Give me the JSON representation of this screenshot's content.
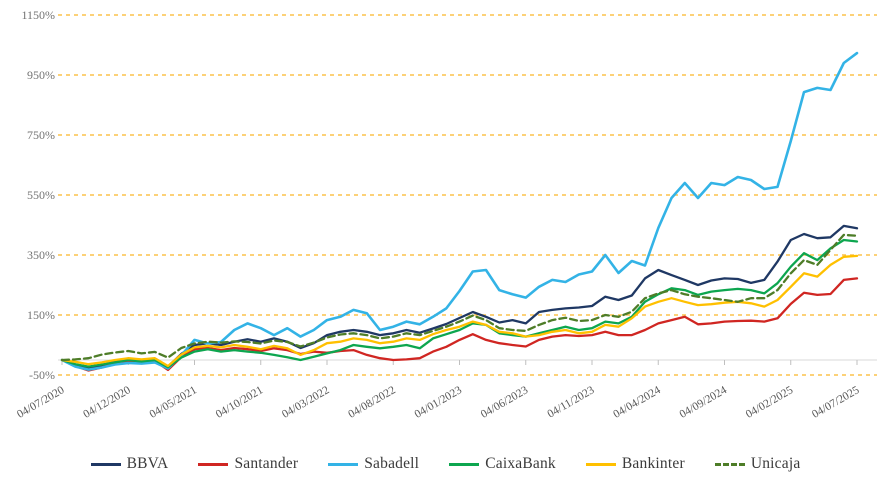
{
  "chart_data": {
    "type": "line",
    "title": "",
    "xlabel": "",
    "ylabel": "",
    "ylim": [
      -50,
      1150
    ],
    "n_points": 61,
    "points_per_tick": 5,
    "grid": "horizontal-dashed",
    "grid_color": "#FCC24B",
    "axis_line_color": "#D9D9D9",
    "tick_color": "#BFBFBF",
    "legend_position": "bottom",
    "y_tick_values": [
      1150,
      950,
      750,
      550,
      350,
      150,
      -50
    ],
    "y_tick_labels": [
      "1150%",
      "950%",
      "750%",
      "550%",
      "350%",
      "150%",
      "-50%"
    ],
    "x_tick_labels": [
      "04/07/2020",
      "04/12/2020",
      "04/05/2021",
      "04/10/2021",
      "04/03/2022",
      "04/08/2022",
      "04/01/2023",
      "04/06/2023",
      "04/11/2023",
      "04/04/2024",
      "04/09/2024",
      "04/02/2025",
      "04/07/2025"
    ],
    "series": [
      {
        "name": "BBVA",
        "color": "#1F3864",
        "dashed": false,
        "values": [
          0,
          -15,
          -28,
          -18,
          -5,
          5,
          0,
          5,
          -22,
          20,
          50,
          56,
          50,
          61,
          69,
          61,
          72,
          61,
          40,
          56,
          83,
          94,
          100,
          94,
          83,
          89,
          100,
          91,
          105,
          120,
          140,
          160,
          144,
          125,
          133,
          122,
          160,
          167,
          172,
          175,
          180,
          211,
          200,
          215,
          272,
          300,
          283,
          267,
          250,
          265,
          272,
          270,
          257,
          267,
          328,
          400,
          420,
          406,
          409,
          447,
          439
        ]
      },
      {
        "name": "Santander",
        "color": "#D02622",
        "dashed": false,
        "values": [
          0,
          -20,
          -35,
          -25,
          -12,
          -5,
          -10,
          -3,
          -33,
          10,
          36,
          40,
          33,
          40,
          36,
          30,
          39,
          33,
          20,
          28,
          24,
          30,
          33,
          17,
          6,
          0,
          2,
          6,
          28,
          44,
          67,
          86,
          67,
          56,
          50,
          45,
          67,
          78,
          83,
          80,
          83,
          94,
          83,
          83,
          100,
          122,
          133,
          144,
          119,
          122,
          128,
          130,
          131,
          128,
          139,
          187,
          224,
          217,
          220,
          267,
          272
        ]
      },
      {
        "name": "Sabadell",
        "color": "#33B3E6",
        "dashed": false,
        "values": [
          0,
          -22,
          -32,
          -25,
          -15,
          -10,
          -12,
          -8,
          -28,
          15,
          67,
          55,
          60,
          100,
          122,
          106,
          83,
          106,
          78,
          100,
          133,
          144,
          167,
          156,
          100,
          111,
          128,
          119,
          144,
          172,
          230,
          295,
          300,
          233,
          219,
          208,
          244,
          267,
          260,
          285,
          295,
          350,
          290,
          330,
          315,
          440,
          540,
          590,
          540,
          590,
          583,
          610,
          600,
          570,
          577,
          730,
          893,
          907,
          900,
          990,
          1023
        ]
      },
      {
        "name": "CaixaBank",
        "color": "#0DA64F",
        "dashed": false,
        "values": [
          0,
          -14,
          -22,
          -15,
          -8,
          0,
          -5,
          0,
          -24,
          8,
          28,
          36,
          28,
          33,
          28,
          24,
          17,
          9,
          0,
          11,
          22,
          33,
          50,
          44,
          39,
          44,
          50,
          39,
          72,
          86,
          100,
          122,
          117,
          89,
          83,
          78,
          89,
          100,
          111,
          100,
          106,
          128,
          122,
          144,
          194,
          219,
          239,
          233,
          217,
          228,
          233,
          237,
          233,
          222,
          256,
          311,
          356,
          333,
          372,
          400,
          395
        ]
      },
      {
        "name": "Bankinter",
        "color": "#FFC000",
        "dashed": false,
        "values": [
          0,
          -6,
          -14,
          -8,
          0,
          6,
          2,
          6,
          -20,
          18,
          42,
          47,
          42,
          50,
          44,
          36,
          47,
          39,
          17,
          33,
          56,
          61,
          72,
          67,
          56,
          61,
          72,
          67,
          86,
          100,
          111,
          128,
          117,
          94,
          89,
          78,
          83,
          94,
          100,
          89,
          94,
          117,
          111,
          139,
          178,
          194,
          206,
          194,
          183,
          186,
          191,
          194,
          189,
          178,
          200,
          244,
          289,
          278,
          317,
          344,
          347
        ]
      },
      {
        "name": "Unicaja",
        "color": "#4E7D28",
        "dashed": true,
        "values": [
          0,
          2,
          6,
          18,
          25,
          30,
          22,
          27,
          8,
          40,
          55,
          61,
          58,
          62,
          60,
          55,
          65,
          60,
          45,
          58,
          75,
          85,
          89,
          83,
          72,
          78,
          89,
          83,
          97,
          111,
          128,
          148,
          133,
          106,
          100,
          97,
          117,
          133,
          141,
          130,
          133,
          150,
          144,
          161,
          206,
          222,
          233,
          219,
          211,
          206,
          200,
          194,
          206,
          206,
          233,
          289,
          333,
          317,
          367,
          417,
          414
        ]
      }
    ]
  }
}
